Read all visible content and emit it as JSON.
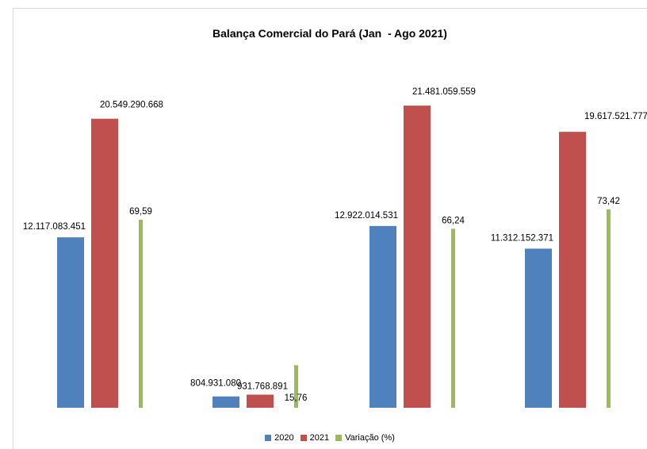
{
  "chart_data": {
    "type": "bar",
    "title": "Balança Comercial do Pará (Jan  - Ago 2021)",
    "xlabel": "",
    "ylabel": "",
    "categories": [
      "",
      "",
      "",
      ""
    ],
    "series": [
      {
        "name": "2020",
        "color": "#4F81BD",
        "values": [
          12117083451,
          804931080,
          12922014531,
          11312152371
        ],
        "labels": [
          "12.117.083.451",
          "804.931.080",
          "12.922.014.531",
          "11.312.152.371"
        ]
      },
      {
        "name": "2021",
        "color": "#C0504D",
        "values": [
          20549290668,
          931768891,
          21481059559,
          19617521777
        ],
        "labels": [
          "20.549.290.668",
          "931.768.891",
          "21.481.059.559",
          "19.617.521.777"
        ]
      },
      {
        "name": "Variação (%)",
        "color": "#9BBB59",
        "values": [
          69.59,
          15.76,
          66.24,
          73.42
        ],
        "labels": [
          "69,59",
          "15,76",
          "66,24",
          "73,42"
        ]
      }
    ],
    "grid": false,
    "legend_position": "bottom"
  }
}
